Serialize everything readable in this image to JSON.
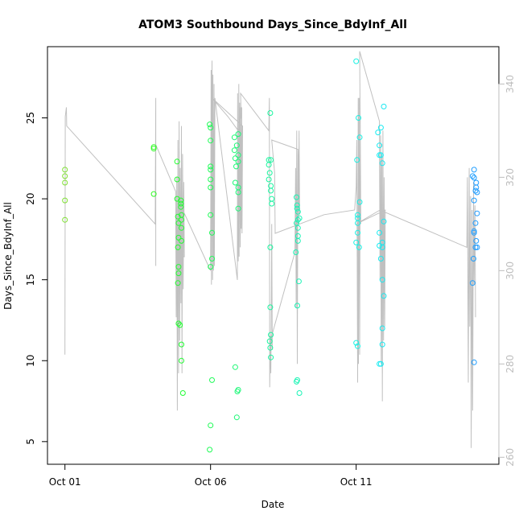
{
  "chart_data": {
    "type": "scatter",
    "title": "ATOM3 Southbound Days_Since_BdyInf_All",
    "xlabel": "Date",
    "ylabel": "Days_Since_BdyInf_All",
    "x_ticks": [
      {
        "label": "Oct 01",
        "value": 0
      },
      {
        "label": "Oct 06",
        "value": 5
      },
      {
        "label": "Oct 11",
        "value": 10
      }
    ],
    "xlim": [
      -0.6,
      14.9
    ],
    "ylim": [
      3.6,
      29.4
    ],
    "y_ticks": [
      5,
      10,
      15,
      20,
      25
    ],
    "right_axis": {
      "ylim": [
        258.5,
        348
      ],
      "ticks": [
        260,
        280,
        300,
        320,
        340
      ],
      "color": "#bdbdbd"
    },
    "grid": false,
    "point_style": "open-circle",
    "color_gradient": [
      "#7fe032",
      "#22ff22",
      "#19f5a0",
      "#19f0f0",
      "#1e9bff"
    ],
    "points": [
      [
        0.0,
        21.8
      ],
      [
        0.0,
        21.4
      ],
      [
        0.0,
        21.0
      ],
      [
        0.0,
        19.9
      ],
      [
        0.0,
        18.7
      ],
      [
        3.05,
        23.2
      ],
      [
        3.05,
        23.1
      ],
      [
        3.05,
        20.3
      ],
      [
        3.85,
        22.3
      ],
      [
        3.85,
        21.2
      ],
      [
        3.85,
        20.0
      ],
      [
        3.88,
        18.9
      ],
      [
        3.9,
        18.5
      ],
      [
        3.9,
        17.6
      ],
      [
        3.88,
        17.0
      ],
      [
        3.9,
        15.8
      ],
      [
        3.9,
        15.4
      ],
      [
        3.88,
        14.8
      ],
      [
        3.9,
        12.3
      ],
      [
        3.95,
        12.2
      ],
      [
        3.98,
        19.9
      ],
      [
        3.98,
        19.7
      ],
      [
        3.98,
        19.5
      ],
      [
        4.0,
        19.0
      ],
      [
        4.0,
        18.7
      ],
      [
        4.0,
        18.2
      ],
      [
        4.0,
        17.4
      ],
      [
        4.0,
        11.0
      ],
      [
        4.0,
        10.0
      ],
      [
        4.05,
        8.0
      ],
      [
        4.97,
        24.6
      ],
      [
        5.0,
        24.4
      ],
      [
        5.0,
        23.6
      ],
      [
        5.0,
        22.0
      ],
      [
        5.0,
        21.8
      ],
      [
        5.0,
        21.2
      ],
      [
        5.0,
        20.7
      ],
      [
        5.0,
        19.0
      ],
      [
        5.05,
        17.9
      ],
      [
        5.05,
        16.3
      ],
      [
        5.0,
        15.8
      ],
      [
        5.05,
        8.8
      ],
      [
        5.0,
        6.0
      ],
      [
        4.97,
        4.5
      ],
      [
        5.82,
        23.8
      ],
      [
        5.82,
        23.0
      ],
      [
        5.85,
        22.5
      ],
      [
        5.88,
        22.0
      ],
      [
        5.85,
        21.0
      ],
      [
        5.95,
        24.0
      ],
      [
        5.9,
        23.3
      ],
      [
        5.95,
        22.7
      ],
      [
        5.95,
        22.3
      ],
      [
        5.95,
        20.7
      ],
      [
        5.95,
        20.4
      ],
      [
        5.95,
        19.4
      ],
      [
        5.85,
        9.6
      ],
      [
        5.95,
        8.2
      ],
      [
        5.92,
        8.1
      ],
      [
        5.9,
        6.5
      ],
      [
        7.05,
        25.3
      ],
      [
        7.0,
        22.4
      ],
      [
        7.0,
        22.1
      ],
      [
        7.03,
        21.6
      ],
      [
        7.0,
        21.2
      ],
      [
        7.07,
        22.4
      ],
      [
        7.07,
        20.8
      ],
      [
        7.07,
        20.5
      ],
      [
        7.1,
        20.0
      ],
      [
        7.1,
        19.7
      ],
      [
        7.05,
        17.0
      ],
      [
        7.05,
        13.3
      ],
      [
        7.07,
        11.6
      ],
      [
        7.03,
        11.2
      ],
      [
        7.05,
        10.8
      ],
      [
        7.07,
        10.2
      ],
      [
        7.95,
        20.1
      ],
      [
        7.97,
        19.6
      ],
      [
        7.97,
        19.4
      ],
      [
        8.0,
        19.2
      ],
      [
        8.0,
        18.7
      ],
      [
        8.0,
        18.2
      ],
      [
        7.95,
        18.5
      ],
      [
        8.05,
        18.8
      ],
      [
        8.0,
        17.7
      ],
      [
        8.0,
        17.4
      ],
      [
        7.93,
        16.7
      ],
      [
        8.03,
        14.9
      ],
      [
        7.98,
        13.4
      ],
      [
        7.98,
        8.8
      ],
      [
        7.95,
        8.7
      ],
      [
        8.05,
        8.0
      ],
      [
        10.0,
        28.5
      ],
      [
        10.08,
        25.0
      ],
      [
        10.12,
        23.8
      ],
      [
        10.03,
        22.4
      ],
      [
        10.05,
        19.0
      ],
      [
        10.12,
        19.8
      ],
      [
        10.05,
        18.8
      ],
      [
        10.05,
        18.5
      ],
      [
        10.05,
        17.9
      ],
      [
        10.0,
        17.3
      ],
      [
        10.1,
        17.0
      ],
      [
        10.0,
        11.1
      ],
      [
        10.05,
        10.9
      ],
      [
        10.75,
        24.1
      ],
      [
        10.85,
        24.4
      ],
      [
        10.8,
        23.3
      ],
      [
        10.8,
        22.7
      ],
      [
        10.85,
        22.7
      ],
      [
        10.9,
        22.2
      ],
      [
        10.95,
        25.7
      ],
      [
        10.8,
        17.9
      ],
      [
        10.8,
        17.1
      ],
      [
        10.9,
        17.3
      ],
      [
        10.9,
        17.0
      ],
      [
        10.95,
        18.6
      ],
      [
        10.85,
        16.3
      ],
      [
        10.9,
        15.0
      ],
      [
        10.95,
        14.0
      ],
      [
        10.9,
        12.0
      ],
      [
        10.9,
        11.0
      ],
      [
        10.85,
        9.8
      ],
      [
        10.8,
        9.8
      ],
      [
        14.0,
        21.4
      ],
      [
        14.05,
        21.8
      ],
      [
        14.05,
        21.3
      ],
      [
        14.12,
        21.0
      ],
      [
        14.12,
        20.7
      ],
      [
        14.15,
        20.4
      ],
      [
        14.05,
        19.9
      ],
      [
        14.1,
        20.5
      ],
      [
        14.15,
        19.1
      ],
      [
        14.05,
        18.0
      ],
      [
        14.1,
        18.5
      ],
      [
        14.05,
        17.9
      ],
      [
        14.12,
        17.4
      ],
      [
        14.15,
        17.0
      ],
      [
        14.1,
        17.0
      ],
      [
        14.03,
        16.3
      ],
      [
        14.0,
        14.8
      ],
      [
        14.05,
        9.9
      ]
    ],
    "right_series_color": "#c0c0c0",
    "right_series_path": [
      [
        0.0,
        282
      ],
      [
        0.01,
        333
      ],
      [
        0.05,
        335
      ],
      [
        0.06,
        331
      ],
      [
        3.1,
        310
      ],
      [
        3.12,
        337
      ],
      [
        3.12,
        301
      ],
      [
        3.12,
        327
      ],
      [
        3.8,
        317
      ],
      [
        3.82,
        290
      ],
      [
        3.84,
        320
      ],
      [
        3.86,
        270
      ],
      [
        3.88,
        328
      ],
      [
        3.9,
        278
      ],
      [
        3.92,
        332
      ],
      [
        3.94,
        285
      ],
      [
        3.96,
        322
      ],
      [
        3.98,
        293
      ],
      [
        4.0,
        331
      ],
      [
        4.02,
        278
      ],
      [
        4.04,
        325
      ],
      [
        4.06,
        296
      ],
      [
        4.08,
        319
      ],
      [
        4.1,
        303
      ],
      [
        3.85,
        304
      ],
      [
        3.88,
        296
      ],
      [
        3.9,
        315
      ],
      [
        5.0,
        300
      ],
      [
        5.02,
        343
      ],
      [
        5.03,
        297
      ],
      [
        5.05,
        345
      ],
      [
        5.07,
        298
      ],
      [
        5.08,
        342
      ],
      [
        5.1,
        300
      ],
      [
        5.12,
        340
      ],
      [
        5.13,
        301
      ],
      [
        5.15,
        337
      ],
      [
        5.92,
        298
      ],
      [
        5.93,
        338
      ],
      [
        5.95,
        302
      ],
      [
        5.97,
        340
      ],
      [
        5.98,
        303
      ],
      [
        6.0,
        336
      ],
      [
        6.02,
        305
      ],
      [
        6.03,
        335
      ],
      [
        6.05,
        309
      ],
      [
        6.07,
        335
      ],
      [
        6.08,
        308
      ],
      [
        6.1,
        331
      ],
      [
        5.05,
        337
      ],
      [
        5.6,
        333
      ],
      [
        5.95,
        330
      ],
      [
        6.05,
        333
      ],
      [
        6.03,
        338
      ],
      [
        7.0,
        330
      ],
      [
        7.02,
        337
      ],
      [
        7.03,
        275
      ],
      [
        7.05,
        286
      ],
      [
        7.07,
        278
      ],
      [
        7.09,
        296
      ],
      [
        7.1,
        310
      ],
      [
        7.12,
        283
      ],
      [
        7.1,
        286
      ],
      [
        7.9,
        304
      ],
      [
        7.92,
        322
      ],
      [
        7.94,
        292
      ],
      [
        7.96,
        330
      ],
      [
        7.98,
        280
      ],
      [
        8.0,
        326
      ],
      [
        8.02,
        310
      ],
      [
        8.04,
        330
      ],
      [
        8.06,
        312
      ],
      [
        8.0,
        326
      ],
      [
        7.1,
        328
      ],
      [
        7.2,
        321
      ],
      [
        7.22,
        308
      ],
      [
        8.9,
        312
      ],
      [
        8.9,
        312
      ],
      [
        9.95,
        313
      ],
      [
        10.0,
        318
      ],
      [
        10.02,
        328
      ],
      [
        10.05,
        276
      ],
      [
        10.07,
        337
      ],
      [
        10.08,
        280
      ],
      [
        10.1,
        337
      ],
      [
        10.12,
        282
      ],
      [
        10.14,
        333
      ],
      [
        10.16,
        310
      ],
      [
        10.12,
        347
      ],
      [
        10.8,
        332
      ],
      [
        10.8,
        332
      ],
      [
        10.82,
        298
      ],
      [
        10.84,
        329
      ],
      [
        10.86,
        280
      ],
      [
        10.88,
        325
      ],
      [
        10.9,
        272
      ],
      [
        10.92,
        330
      ],
      [
        10.94,
        285
      ],
      [
        10.96,
        320
      ],
      [
        10.98,
        288
      ],
      [
        11.0,
        313
      ],
      [
        10.0,
        310
      ],
      [
        10.82,
        313
      ],
      [
        13.8,
        305
      ],
      [
        13.82,
        320
      ],
      [
        13.85,
        276
      ],
      [
        13.88,
        322
      ],
      [
        13.9,
        288
      ],
      [
        13.93,
        316
      ],
      [
        13.95,
        262
      ],
      [
        13.98,
        313
      ],
      [
        14.0,
        270
      ],
      [
        14.03,
        319
      ],
      [
        14.05,
        297
      ],
      [
        14.08,
        314
      ],
      [
        14.1,
        290
      ]
    ]
  }
}
